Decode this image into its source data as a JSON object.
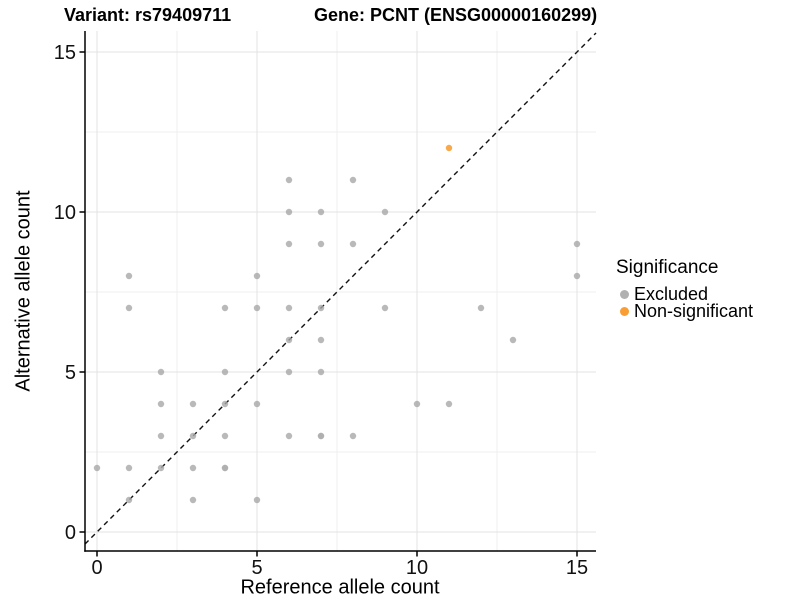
{
  "title": {
    "variant": "Variant: rs79409711",
    "gene": "Gene: PCNT (ENSG00000160299)"
  },
  "axes": {
    "x_label": "Reference allele count",
    "y_label": "Alternative allele count",
    "x_ticks": [
      0,
      5,
      10,
      15
    ],
    "y_ticks": [
      0,
      5,
      10,
      15
    ]
  },
  "legend": {
    "title": "Significance",
    "items": [
      {
        "label": "Excluded",
        "color": "#a8a8a8"
      },
      {
        "label": "Non-significant",
        "color": "#f7941d"
      }
    ]
  },
  "colors": {
    "excluded": "#a8a8a8",
    "non_significant": "#f7941d",
    "grid_major": "#e3e3e3",
    "grid_minor": "#efefef",
    "axis_line": "#000000",
    "identity_line": "#111111"
  },
  "chart_data": {
    "type": "scatter",
    "title": "Variant: rs79409711   Gene: PCNT (ENSG00000160299)",
    "xlabel": "Reference allele count",
    "ylabel": "Alternative allele count",
    "xlim": [
      -0.4,
      15.6
    ],
    "ylim": [
      -0.6,
      15.7
    ],
    "grid": "on",
    "legend_position": "right",
    "identity_line": "dashed y = x",
    "minor_gridlines": [
      2.5,
      7.5,
      12.5
    ],
    "series": [
      {
        "name": "Excluded",
        "color": "#a8a8a8",
        "points": [
          [
            0,
            2
          ],
          [
            1,
            1
          ],
          [
            1,
            2
          ],
          [
            1,
            7
          ],
          [
            1,
            8
          ],
          [
            2,
            2
          ],
          [
            2,
            3
          ],
          [
            2,
            4
          ],
          [
            2,
            5
          ],
          [
            3,
            1
          ],
          [
            3,
            2
          ],
          [
            3,
            3
          ],
          [
            3,
            4
          ],
          [
            4,
            2
          ],
          [
            4,
            3
          ],
          [
            4,
            4
          ],
          [
            4,
            5
          ],
          [
            4,
            7
          ],
          [
            5,
            1
          ],
          [
            5,
            4
          ],
          [
            5,
            7
          ],
          [
            5,
            8
          ],
          [
            6,
            3
          ],
          [
            6,
            5
          ],
          [
            6,
            6
          ],
          [
            6,
            7
          ],
          [
            6,
            9
          ],
          [
            6,
            10
          ],
          [
            6,
            11
          ],
          [
            7,
            3
          ],
          [
            7,
            5
          ],
          [
            7,
            6
          ],
          [
            7,
            7
          ],
          [
            7,
            9
          ],
          [
            7,
            10
          ],
          [
            8,
            3
          ],
          [
            8,
            9
          ],
          [
            8,
            11
          ],
          [
            9,
            7
          ],
          [
            9,
            10
          ],
          [
            10,
            4
          ],
          [
            11,
            4
          ],
          [
            12,
            7
          ],
          [
            13,
            6
          ],
          [
            15,
            8
          ],
          [
            15,
            9
          ]
        ],
        "overplotted_darker_points": [
          [
            4,
            2
          ],
          [
            7,
            3
          ]
        ]
      },
      {
        "name": "Non-significant",
        "color": "#f7941d",
        "points": [
          [
            11,
            12
          ]
        ]
      }
    ]
  }
}
